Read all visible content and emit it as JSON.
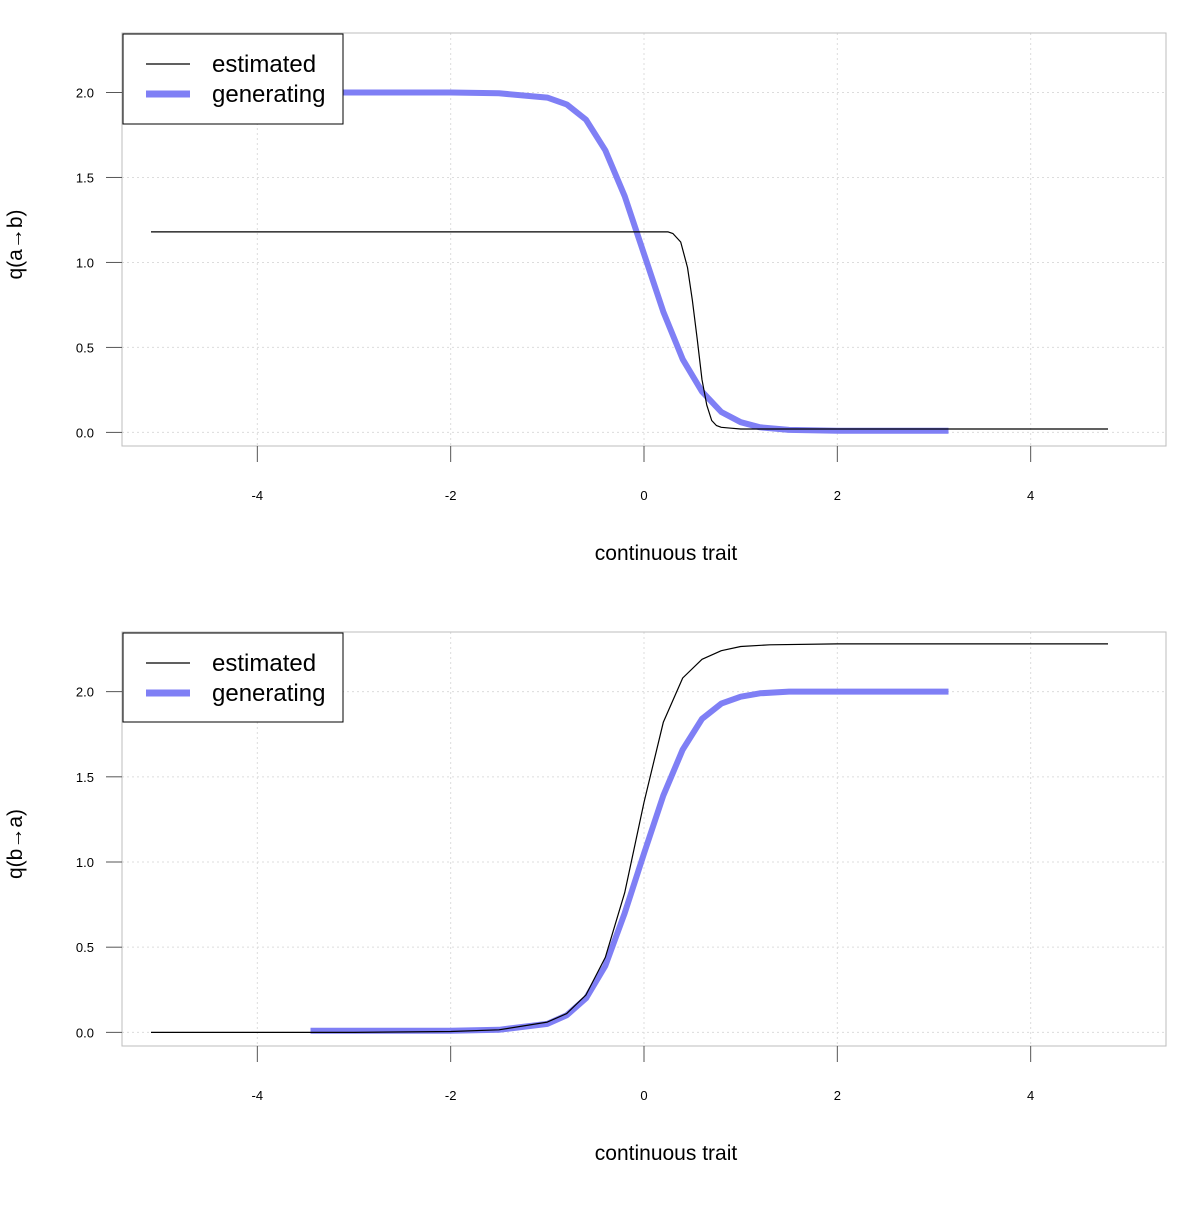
{
  "chart_data": [
    {
      "type": "line",
      "title": "",
      "xlabel": "continuous trait",
      "ylabel": "q(a→b)",
      "xlim": [
        -5.4,
        5.4
      ],
      "ylim": [
        -0.08,
        2.35
      ],
      "xticks": [
        "-4",
        "-2",
        "0",
        "2",
        "4"
      ],
      "yticks": [
        "0.0",
        "0.5",
        "1.0",
        "1.5",
        "2.0"
      ],
      "grid": true,
      "legend_position": "top-left",
      "series": [
        {
          "name": "estimated",
          "color": "#000000",
          "x": [
            -5.1,
            -3.0,
            -1.0,
            0.0,
            0.25,
            0.3,
            0.38,
            0.45,
            0.5,
            0.55,
            0.6,
            0.65,
            0.7,
            0.75,
            0.8,
            0.9,
            1.0,
            2.0,
            3.0,
            4.0,
            4.8
          ],
          "y": [
            1.18,
            1.18,
            1.18,
            1.18,
            1.18,
            1.17,
            1.12,
            0.97,
            0.78,
            0.55,
            0.31,
            0.16,
            0.07,
            0.04,
            0.03,
            0.025,
            0.02,
            0.02,
            0.02,
            0.02,
            0.02
          ]
        },
        {
          "name": "generating",
          "color": "#7f7ff5",
          "x": [
            -3.45,
            -2.0,
            -1.5,
            -1.0,
            -0.8,
            -0.6,
            -0.4,
            -0.2,
            0.0,
            0.2,
            0.4,
            0.6,
            0.8,
            1.0,
            1.2,
            1.5,
            2.0,
            3.15
          ],
          "y": [
            2.0,
            2.0,
            1.995,
            1.97,
            1.93,
            1.84,
            1.66,
            1.39,
            1.05,
            0.71,
            0.43,
            0.24,
            0.12,
            0.06,
            0.03,
            0.015,
            0.01,
            0.01
          ]
        }
      ]
    },
    {
      "type": "line",
      "title": "",
      "xlabel": "continuous trait",
      "ylabel": "q(b→a)",
      "xlim": [
        -5.4,
        5.4
      ],
      "ylim": [
        -0.08,
        2.35
      ],
      "xticks": [
        "-4",
        "-2",
        "0",
        "2",
        "4"
      ],
      "yticks": [
        "0.0",
        "0.5",
        "1.0",
        "1.5",
        "2.0"
      ],
      "grid": true,
      "legend_position": "top-left",
      "series": [
        {
          "name": "estimated",
          "color": "#000000",
          "x": [
            -5.1,
            -3.0,
            -2.0,
            -1.5,
            -1.0,
            -0.8,
            -0.6,
            -0.4,
            -0.2,
            0.0,
            0.2,
            0.4,
            0.6,
            0.8,
            1.0,
            1.3,
            2.0,
            3.0,
            4.0,
            4.8
          ],
          "y": [
            0.0,
            0.0,
            0.005,
            0.015,
            0.06,
            0.11,
            0.22,
            0.44,
            0.82,
            1.35,
            1.82,
            2.08,
            2.19,
            2.24,
            2.265,
            2.275,
            2.28,
            2.28,
            2.28,
            2.28
          ]
        },
        {
          "name": "generating",
          "color": "#7f7ff5",
          "x": [
            -3.45,
            -2.0,
            -1.5,
            -1.0,
            -0.8,
            -0.6,
            -0.4,
            -0.2,
            0.0,
            0.2,
            0.4,
            0.6,
            0.8,
            1.0,
            1.2,
            1.5,
            2.0,
            3.15
          ],
          "y": [
            0.01,
            0.01,
            0.015,
            0.05,
            0.1,
            0.2,
            0.39,
            0.7,
            1.05,
            1.39,
            1.66,
            1.84,
            1.93,
            1.97,
            1.99,
            2.0,
            2.0,
            2.0
          ]
        }
      ]
    }
  ]
}
